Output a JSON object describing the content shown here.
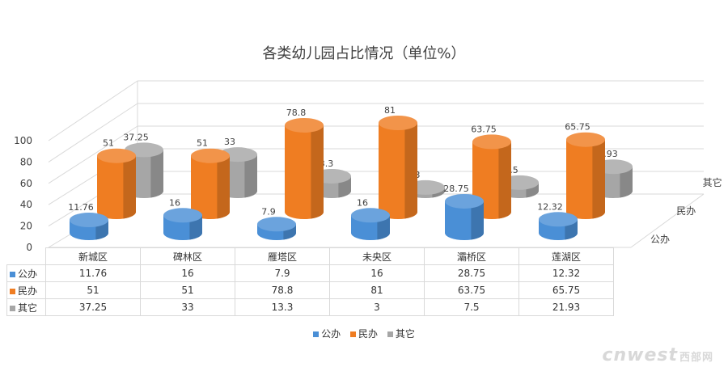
{
  "chart_data": {
    "type": "bar",
    "title": "各类幼儿园占比情况（单位%）",
    "categories": [
      "新城区",
      "碑林区",
      "雁塔区",
      "未央区",
      "灞桥区",
      "莲湖区"
    ],
    "series": [
      {
        "name": "公办",
        "values": [
          11.76,
          16,
          7.9,
          16,
          28.75,
          12.32
        ],
        "color": "#4a8fd6"
      },
      {
        "name": "民办",
        "values": [
          51,
          51,
          78.8,
          81,
          63.75,
          65.75
        ],
        "color": "#ef7d22"
      },
      {
        "name": "其它",
        "values": [
          37.25,
          33,
          13.3,
          3,
          7.5,
          21.93
        ],
        "color": "#a6a6a6"
      }
    ],
    "y_ticks": [
      0,
      20,
      40,
      60,
      80,
      100
    ],
    "ylim": [
      0,
      100
    ],
    "data_table": true,
    "legend_position": "bottom"
  },
  "watermark": {
    "text": "cnwest",
    "suffix": "西部网"
  }
}
